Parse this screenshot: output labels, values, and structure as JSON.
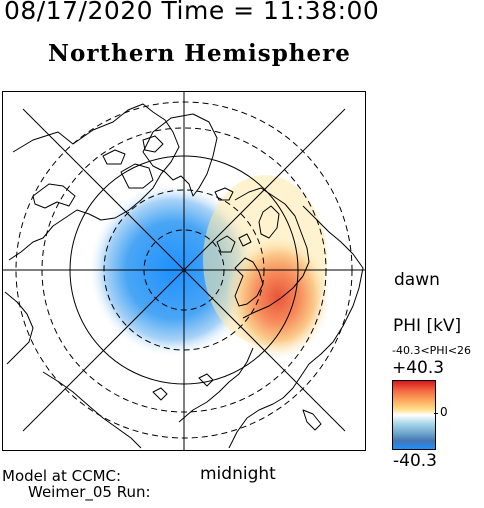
{
  "header": {
    "datetime": "08/17/2020 Time = 11:38:00",
    "hemisphere": "Northern Hemisphere"
  },
  "map": {
    "labels": {
      "dawn": "dawn",
      "midnight": "midnight"
    },
    "potential_pattern": {
      "negative_cell": "dusk/pre-midnight side, blue",
      "positive_cell": "dawn side, red/yellow"
    }
  },
  "colorbar": {
    "title": "PHI [kV]",
    "range_text": "-40.3<PHI<26",
    "max_label": "+40.3",
    "zero_label": "0",
    "min_label": "-40.3",
    "max_color": "#d7191c",
    "zero_color": "#ffffff",
    "min_color": "#1e90ff"
  },
  "footer": {
    "line1": "Model at CCMC:",
    "line2": "Weimer_05 Run:"
  }
}
